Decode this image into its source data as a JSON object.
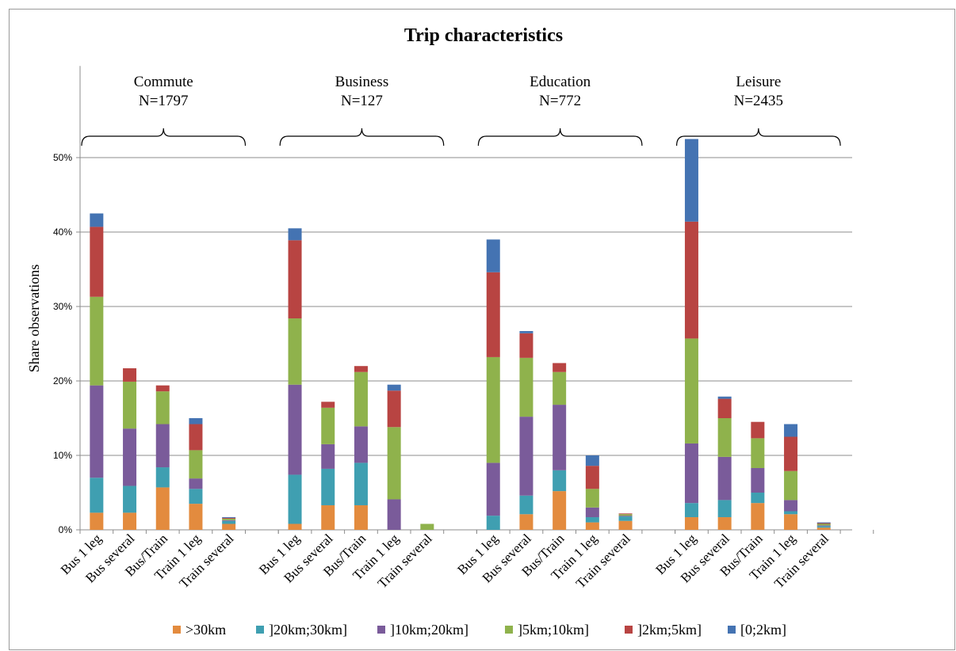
{
  "chart_data": {
    "type": "bar",
    "stacked": true,
    "title": "Trip characteristics",
    "ylabel": "Share observations",
    "xlabel": "",
    "ylim": [
      0,
      57
    ],
    "y_ticks": [
      0,
      10,
      20,
      30,
      40,
      50
    ],
    "y_tick_labels": [
      "0%",
      "10%",
      "20%",
      "30%",
      "40%",
      "50%"
    ],
    "grid": true,
    "legend_position": "bottom",
    "categories": [
      "Bus 1 leg",
      "Bus several",
      "Bus/Train",
      "Train 1 leg",
      "Train several"
    ],
    "groups": [
      {
        "label": "Commute",
        "n_label": "N=1797"
      },
      {
        "label": "Business",
        "n_label": "N=127"
      },
      {
        "label": "Education",
        "n_label": "N=772"
      },
      {
        "label": "Leisure",
        "n_label": "N=2435"
      }
    ],
    "series": [
      {
        "name": ">30km",
        "color": "#e38b3e",
        "values": [
          [
            2.3,
            2.3,
            5.7,
            3.5,
            0.8
          ],
          [
            0.8,
            3.3,
            3.3,
            0,
            0
          ],
          [
            0,
            2.1,
            5.2,
            1.0,
            1.2
          ],
          [
            1.7,
            1.7,
            3.6,
            2.1,
            0.3
          ]
        ]
      },
      {
        "name": "]20km;30km]",
        "color": "#3f9fb1",
        "values": [
          [
            4.7,
            3.6,
            2.7,
            2.0,
            0.4
          ],
          [
            6.6,
            4.9,
            5.7,
            0,
            0
          ],
          [
            1.9,
            2.5,
            2.8,
            0.7,
            0.6
          ],
          [
            1.9,
            2.3,
            1.4,
            0.4,
            0.2
          ]
        ]
      },
      {
        "name": "]10km;20km]",
        "color": "#7a5b9a",
        "values": [
          [
            12.4,
            7.7,
            5.8,
            1.4,
            0.1
          ],
          [
            12.1,
            3.3,
            4.9,
            4.1,
            0
          ],
          [
            7.1,
            10.6,
            8.8,
            1.3,
            0.1
          ],
          [
            8.0,
            5.8,
            3.3,
            1.5,
            0.1
          ]
        ]
      },
      {
        "name": "]5km;10km]",
        "color": "#8fb24c",
        "values": [
          [
            11.9,
            6.3,
            4.4,
            3.8,
            0.2
          ],
          [
            8.9,
            4.9,
            7.3,
            9.7,
            0.8
          ],
          [
            14.2,
            7.9,
            4.4,
            2.5,
            0.2
          ],
          [
            14.1,
            5.2,
            4.0,
            3.9,
            0.2
          ]
        ]
      },
      {
        "name": "]2km;5km]",
        "color": "#b84442",
        "values": [
          [
            9.4,
            1.8,
            0.8,
            3.5,
            0.1
          ],
          [
            10.5,
            0.8,
            0.8,
            4.9,
            0
          ],
          [
            11.4,
            3.3,
            1.2,
            3.1,
            0.1
          ],
          [
            15.7,
            2.6,
            2.2,
            4.6,
            0.1
          ]
        ]
      },
      {
        "name": "[0;2km]",
        "color": "#4473b2",
        "values": [
          [
            1.8,
            0,
            0,
            0.8,
            0.1
          ],
          [
            1.6,
            0,
            0,
            0.8,
            0
          ],
          [
            4.4,
            0.3,
            0,
            1.4,
            0
          ],
          [
            11.1,
            0.3,
            0,
            1.7,
            0.1
          ]
        ]
      }
    ]
  }
}
